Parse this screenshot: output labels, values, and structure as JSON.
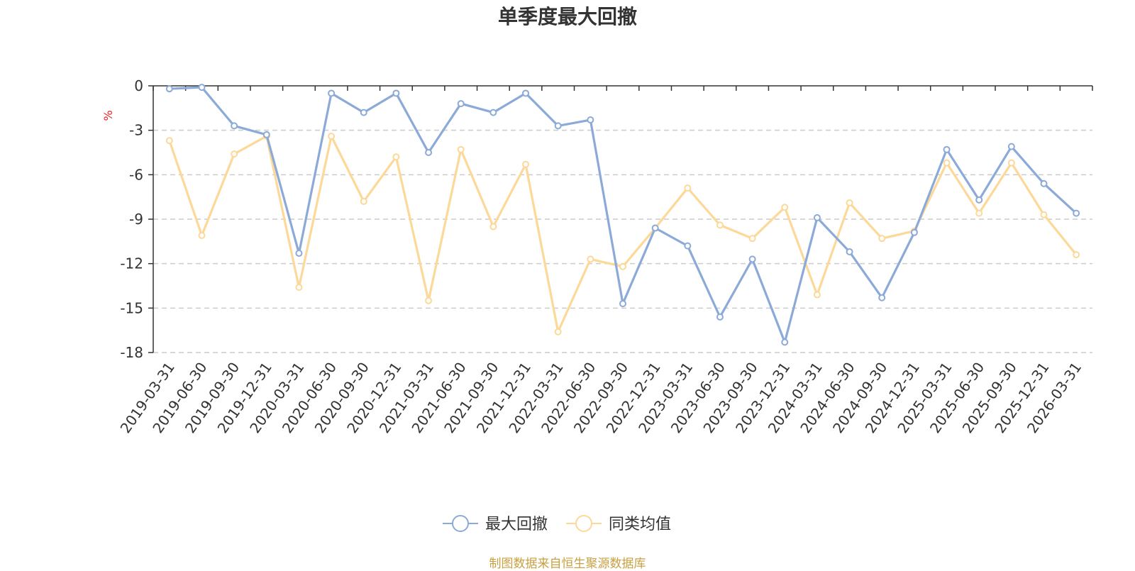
{
  "chart_data": {
    "type": "line",
    "title": "单季度最大回撤",
    "ylabel": "%",
    "ylim": [
      -18,
      0
    ],
    "yticks": [
      0,
      -3,
      -6,
      -9,
      -12,
      -15,
      -18
    ],
    "grid": true,
    "legend_position": "bottom",
    "categories": [
      "2019-03-31",
      "2019-06-30",
      "2019-09-30",
      "2019-12-31",
      "2020-03-31",
      "2020-06-30",
      "2020-09-30",
      "2020-12-31",
      "2021-03-31",
      "2021-06-30",
      "2021-09-30",
      "2021-12-31",
      "2022-03-31",
      "2022-06-30",
      "2022-09-30",
      "2022-12-31",
      "2023-03-31",
      "2023-06-30",
      "2023-09-30",
      "2023-12-31",
      "2024-03-31",
      "2024-06-30",
      "2024-09-30",
      "2024-12-31",
      "2025-03-31",
      "2025-06-30",
      "2025-09-30",
      "2025-12-31",
      "2026-03-31"
    ],
    "series": [
      {
        "name": "最大回撤",
        "color": "#8caad8",
        "values": [
          -0.2,
          -0.1,
          -2.7,
          -3.3,
          -11.3,
          -0.5,
          -1.8,
          -0.5,
          -4.5,
          -1.2,
          -1.8,
          -0.5,
          -2.7,
          -2.3,
          -14.7,
          -9.6,
          -10.8,
          -15.6,
          -11.7,
          -17.3,
          -8.9,
          -11.2,
          -14.3,
          -9.9,
          -4.3,
          -7.7,
          -4.1,
          -6.6,
          -8.6
        ]
      },
      {
        "name": "同类均值",
        "color": "#fcd899",
        "values": [
          -3.7,
          -10.1,
          -4.6,
          -3.4,
          -13.6,
          -3.4,
          -7.8,
          -4.8,
          -14.5,
          -4.3,
          -9.5,
          -5.3,
          -16.6,
          -11.7,
          -12.2,
          -9.6,
          -6.9,
          -9.4,
          -10.3,
          -8.2,
          -14.1,
          -7.9,
          -10.3,
          -9.8,
          -5.2,
          -8.6,
          -5.2,
          -8.7,
          -11.4
        ]
      }
    ]
  },
  "footer": {
    "source_text": "制图数据来自恒生聚源数据库"
  }
}
